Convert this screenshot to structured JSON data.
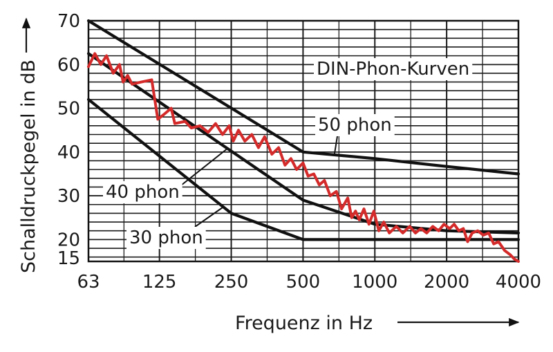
{
  "chart_data": {
    "type": "line",
    "title": "DIN-Phon-Kurven",
    "xlabel": "Frequenz in Hz",
    "ylabel": "Schalldruckpegel in dB",
    "x_scale": "log",
    "xlim": [
      63,
      4000
    ],
    "ylim": [
      15,
      70
    ],
    "x_ticks": [
      63,
      125,
      250,
      500,
      1000,
      2000,
      4000
    ],
    "x_tick_labels": [
      "63",
      "125",
      "250",
      "500",
      "1000",
      "2000",
      "4000"
    ],
    "y_ticks": [
      15,
      20,
      30,
      40,
      50,
      60,
      70
    ],
    "y_tick_labels": [
      "15",
      "20",
      "30",
      "40",
      "50",
      "60",
      "70"
    ],
    "grid": true,
    "colors": {
      "phon": "#111111",
      "measured": "#d42a2a",
      "grid": "#1a1a1a"
    },
    "series": [
      {
        "name": "50 phon",
        "color": "#111111",
        "points": [
          [
            63,
            70
          ],
          [
            500,
            40
          ],
          [
            1000,
            38.5
          ],
          [
            2000,
            36.7
          ],
          [
            4000,
            35
          ]
        ]
      },
      {
        "name": "40 phon",
        "color": "#111111",
        "points": [
          [
            63,
            62.5
          ],
          [
            500,
            29
          ],
          [
            1000,
            23.5
          ],
          [
            2000,
            22
          ],
          [
            4000,
            21.5
          ]
        ]
      },
      {
        "name": "30 phon",
        "color": "#111111",
        "points": [
          [
            63,
            52
          ],
          [
            250,
            26
          ],
          [
            500,
            20
          ],
          [
            4000,
            20
          ]
        ]
      },
      {
        "name": "",
        "color": "#d42a2a",
        "points": [
          [
            63,
            59.5
          ],
          [
            67,
            62.5
          ],
          [
            71,
            60
          ],
          [
            75,
            62
          ],
          [
            80,
            58
          ],
          [
            85,
            60
          ],
          [
            88,
            56
          ],
          [
            92,
            57.5
          ],
          [
            96,
            55.5
          ],
          [
            105,
            56
          ],
          [
            116,
            56.5
          ],
          [
            123,
            47.5
          ],
          [
            130,
            48.5
          ],
          [
            140,
            50
          ],
          [
            145,
            46.5
          ],
          [
            160,
            47
          ],
          [
            170,
            45.5
          ],
          [
            185,
            46
          ],
          [
            200,
            44.5
          ],
          [
            215,
            46.5
          ],
          [
            230,
            44
          ],
          [
            245,
            46
          ],
          [
            255,
            42.5
          ],
          [
            268,
            45
          ],
          [
            285,
            42.5
          ],
          [
            305,
            44
          ],
          [
            325,
            41
          ],
          [
            345,
            43.5
          ],
          [
            370,
            39.5
          ],
          [
            395,
            41
          ],
          [
            420,
            37
          ],
          [
            445,
            38.5
          ],
          [
            470,
            36
          ],
          [
            500,
            37.5
          ],
          [
            525,
            34.5
          ],
          [
            555,
            35
          ],
          [
            585,
            32.5
          ],
          [
            615,
            33.5
          ],
          [
            650,
            30
          ],
          [
            690,
            31
          ],
          [
            725,
            27
          ],
          [
            770,
            29.5
          ],
          [
            800,
            25
          ],
          [
            830,
            26.5
          ],
          [
            860,
            24.5
          ],
          [
            900,
            27
          ],
          [
            945,
            23.5
          ],
          [
            990,
            26.5
          ],
          [
            1040,
            22
          ],
          [
            1090,
            24
          ],
          [
            1150,
            21.5
          ],
          [
            1230,
            23
          ],
          [
            1310,
            21.5
          ],
          [
            1400,
            23
          ],
          [
            1480,
            21.5
          ],
          [
            1560,
            22.5
          ],
          [
            1650,
            21.5
          ],
          [
            1750,
            23
          ],
          [
            1850,
            22
          ],
          [
            1950,
            23.5
          ],
          [
            2060,
            22.5
          ],
          [
            2150,
            23.5
          ],
          [
            2250,
            22
          ],
          [
            2350,
            22.5
          ],
          [
            2450,
            19.5
          ],
          [
            2560,
            21.5
          ],
          [
            2700,
            22
          ],
          [
            2850,
            21
          ],
          [
            3000,
            21.5
          ],
          [
            3150,
            19
          ],
          [
            3300,
            19.5
          ],
          [
            3500,
            17.5
          ],
          [
            3700,
            16.5
          ],
          [
            3850,
            15.5
          ],
          [
            4000,
            15
          ]
        ]
      }
    ],
    "annotations": [
      "DIN-Phon-Kurven",
      "50 phon",
      "40 phon",
      "30 phon"
    ]
  }
}
